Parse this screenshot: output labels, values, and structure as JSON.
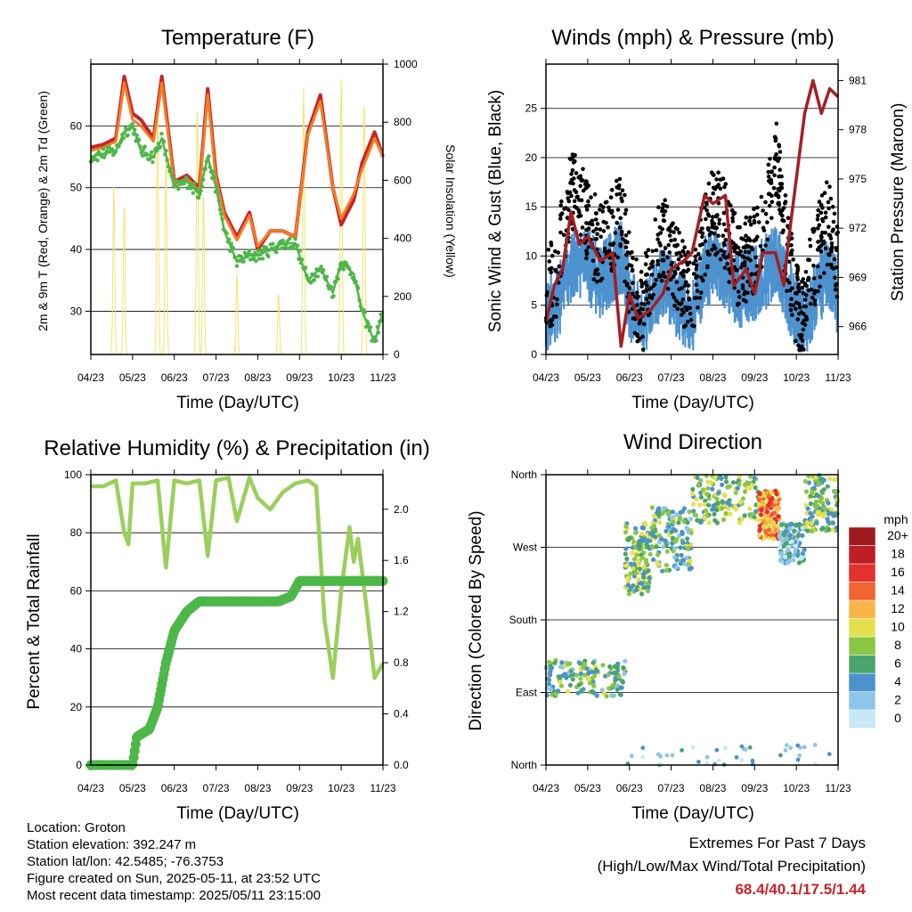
{
  "x_ticks": [
    "04/23",
    "05/23",
    "06/23",
    "07/23",
    "08/23",
    "09/23",
    "10/23",
    "11/23"
  ],
  "xlabel": "Time (Day/UTC)",
  "chart_data": [
    {
      "type": "line",
      "title": "Temperature (F)",
      "xlabel": "Time (Day/UTC)",
      "ylabel": "2m & 9m T (Red, Orange) & 2m Td (Green)",
      "y2label": "Solar Insolation (Yellow)",
      "ylim": [
        23,
        70
      ],
      "y2lim": [
        0,
        1000
      ],
      "yticks": [
        30,
        40,
        50,
        60
      ],
      "y2ticks": [
        0,
        200,
        400,
        600,
        800,
        1000
      ],
      "x": [
        0,
        0.3,
        0.6,
        0.8,
        1.0,
        1.2,
        1.5,
        1.7,
        2.0,
        2.3,
        2.6,
        2.8,
        3.0,
        3.2,
        3.5,
        3.8,
        4.0,
        4.3,
        4.6,
        4.9,
        5.2,
        5.5,
        5.8,
        6.0,
        6.3,
        6.5,
        6.8,
        7.0
      ],
      "series": [
        {
          "name": "2m T",
          "color": "#c8222b",
          "values": [
            56.5,
            57,
            58,
            68,
            62,
            61,
            58,
            68,
            51,
            52,
            50,
            66,
            52,
            46,
            42,
            46,
            40,
            43,
            43,
            42,
            59,
            65,
            50,
            44,
            48,
            54,
            59,
            55
          ]
        },
        {
          "name": "9m T",
          "color": "#f47d20",
          "values": [
            56,
            56.5,
            57.5,
            67,
            61,
            60,
            57.5,
            67,
            50.5,
            51.5,
            49.5,
            65,
            51.5,
            45.5,
            41.5,
            45.5,
            40.5,
            43,
            43,
            42,
            58.5,
            64,
            50,
            45,
            49,
            53,
            58,
            55
          ]
        },
        {
          "name": "2m Td",
          "color": "#4db748",
          "values": [
            55,
            55.5,
            56,
            59,
            60,
            56,
            55,
            58,
            50,
            51,
            49,
            55,
            50,
            43,
            38,
            39,
            39,
            40,
            41,
            41,
            35,
            37,
            33,
            38,
            36,
            30,
            25,
            30
          ]
        }
      ],
      "insolation_peaks": [
        {
          "x": 0.55,
          "value": 580
        },
        {
          "x": 0.8,
          "value": 520
        },
        {
          "x": 1.6,
          "value": 880
        },
        {
          "x": 1.8,
          "value": 700
        },
        {
          "x": 2.55,
          "value": 860
        },
        {
          "x": 2.7,
          "value": 560
        },
        {
          "x": 3.5,
          "value": 280
        },
        {
          "x": 4.5,
          "value": 210
        },
        {
          "x": 5.1,
          "value": 920
        },
        {
          "x": 6.0,
          "value": 960
        },
        {
          "x": 6.55,
          "value": 880
        }
      ]
    },
    {
      "type": "scatter",
      "title": "Winds (mph) & Pressure (mb)",
      "xlabel": "Time (Day/UTC)",
      "ylabel": "Sonic Wind & Gust (Blue, Black)",
      "y2label": "Station Pressure (Maroon)",
      "ylim": [
        0,
        29.5
      ],
      "y2lim": [
        964.3,
        982.0
      ],
      "yticks": [
        0,
        5,
        10,
        15,
        20,
        25
      ],
      "y2ticks": [
        966,
        969,
        972,
        975,
        978,
        981
      ],
      "wind_mean": [
        [
          0,
          3.5
        ],
        [
          0.3,
          5
        ],
        [
          0.5,
          8
        ],
        [
          0.7,
          9.5
        ],
        [
          1.0,
          8.5
        ],
        [
          1.3,
          7
        ],
        [
          1.6,
          8.5
        ],
        [
          1.8,
          9.5
        ],
        [
          2.0,
          5
        ],
        [
          2.3,
          2.5
        ],
        [
          2.5,
          5
        ],
        [
          2.8,
          7
        ],
        [
          3.0,
          6
        ],
        [
          3.3,
          4
        ],
        [
          3.5,
          3.5
        ],
        [
          3.8,
          7.5
        ],
        [
          4.0,
          9
        ],
        [
          4.3,
          8
        ],
        [
          4.6,
          6
        ],
        [
          4.9,
          6.5
        ],
        [
          5.2,
          7.5
        ],
        [
          5.5,
          9
        ],
        [
          5.8,
          6
        ],
        [
          6.1,
          2
        ],
        [
          6.3,
          4
        ],
        [
          6.6,
          7
        ],
        [
          6.8,
          8
        ],
        [
          7.0,
          5
        ]
      ],
      "gust_mean": [
        [
          0,
          5.5
        ],
        [
          0.3,
          9
        ],
        [
          0.5,
          15
        ],
        [
          0.7,
          16.5
        ],
        [
          1.0,
          13
        ],
        [
          1.3,
          11
        ],
        [
          1.6,
          13
        ],
        [
          1.8,
          15
        ],
        [
          2.0,
          8
        ],
        [
          2.3,
          4
        ],
        [
          2.5,
          8
        ],
        [
          2.8,
          12
        ],
        [
          3.0,
          10
        ],
        [
          3.3,
          7
        ],
        [
          3.5,
          6
        ],
        [
          3.8,
          12
        ],
        [
          4.0,
          15
        ],
        [
          4.3,
          13
        ],
        [
          4.6,
          9
        ],
        [
          4.9,
          10
        ],
        [
          5.2,
          13
        ],
        [
          5.5,
          20
        ],
        [
          5.8,
          10
        ],
        [
          6.1,
          3
        ],
        [
          6.3,
          7
        ],
        [
          6.6,
          12
        ],
        [
          6.8,
          14
        ],
        [
          7.0,
          9
        ]
      ],
      "pressure": [
        [
          0,
          966.3
        ],
        [
          0.2,
          968.5
        ],
        [
          0.4,
          969.5
        ],
        [
          0.6,
          973
        ],
        [
          0.8,
          971
        ],
        [
          1.0,
          971.5
        ],
        [
          1.3,
          970
        ],
        [
          1.6,
          970.5
        ],
        [
          1.8,
          964.8
        ],
        [
          2.0,
          968
        ],
        [
          2.2,
          966.5
        ],
        [
          2.5,
          967
        ],
        [
          2.8,
          968
        ],
        [
          3.0,
          969.5
        ],
        [
          3.3,
          970
        ],
        [
          3.5,
          970.5
        ],
        [
          3.8,
          974
        ],
        [
          4.0,
          973.5
        ],
        [
          4.3,
          974
        ],
        [
          4.5,
          968.5
        ],
        [
          4.8,
          969.5
        ],
        [
          5.0,
          968
        ],
        [
          5.2,
          970.5
        ],
        [
          5.5,
          970.5
        ],
        [
          5.7,
          968.5
        ],
        [
          5.8,
          971
        ],
        [
          6.0,
          975
        ],
        [
          6.2,
          979
        ],
        [
          6.4,
          981
        ],
        [
          6.6,
          979
        ],
        [
          6.8,
          980.5
        ],
        [
          7.0,
          980
        ]
      ]
    },
    {
      "type": "line",
      "title": "Relative Humidity (%) & Precipitation (in)",
      "xlabel": "Time (Day/UTC)",
      "ylabel": "Percent & Total Rainfall",
      "ylim": [
        0,
        100
      ],
      "y2lim": [
        0,
        2.27
      ],
      "yticks": [
        0,
        20,
        40,
        60,
        80,
        100
      ],
      "y2ticks": [
        0.0,
        0.4,
        0.8,
        1.2,
        1.6,
        2.0
      ],
      "series": [
        {
          "name": "Relative Humidity",
          "color": "#9bcf5c",
          "points": [
            [
              0,
              96
            ],
            [
              0.3,
              96
            ],
            [
              0.6,
              98
            ],
            [
              0.8,
              80
            ],
            [
              0.9,
              76
            ],
            [
              1.0,
              97
            ],
            [
              1.3,
              97
            ],
            [
              1.6,
              98
            ],
            [
              1.8,
              68
            ],
            [
              2.0,
              98
            ],
            [
              2.3,
              97
            ],
            [
              2.6,
              98
            ],
            [
              2.8,
              72
            ],
            [
              3.0,
              98
            ],
            [
              3.3,
              99
            ],
            [
              3.5,
              84
            ],
            [
              3.8,
              99
            ],
            [
              4.0,
              92
            ],
            [
              4.3,
              88
            ],
            [
              4.6,
              94
            ],
            [
              4.9,
              97
            ],
            [
              5.2,
              98
            ],
            [
              5.4,
              96
            ],
            [
              5.6,
              50
            ],
            [
              5.8,
              30
            ],
            [
              6.0,
              60
            ],
            [
              6.2,
              82
            ],
            [
              6.3,
              70
            ],
            [
              6.4,
              78
            ],
            [
              6.6,
              55
            ],
            [
              6.8,
              30
            ],
            [
              7.0,
              35
            ]
          ]
        },
        {
          "name": "Total Rainfall",
          "color": "#4db748",
          "points": [
            [
              0,
              0
            ],
            [
              1.0,
              0
            ],
            [
              1.1,
              0.22
            ],
            [
              1.4,
              0.28
            ],
            [
              1.6,
              0.45
            ],
            [
              1.8,
              0.8
            ],
            [
              2.0,
              1.05
            ],
            [
              2.3,
              1.2
            ],
            [
              2.6,
              1.28
            ],
            [
              4.5,
              1.28
            ],
            [
              4.8,
              1.32
            ],
            [
              5.0,
              1.44
            ],
            [
              7.0,
              1.44
            ]
          ]
        }
      ]
    },
    {
      "type": "scatter",
      "title": "Wind Direction",
      "xlabel": "Time (Day/UTC)",
      "ylabel": "Direction (Colored By Speed)",
      "ylim": [
        0,
        360
      ],
      "yticks": [
        "North",
        "East",
        "South",
        "West",
        "North"
      ],
      "legend_title": "mph",
      "legend_labels": [
        "0",
        "2",
        "4",
        "6",
        "8",
        "10",
        "12",
        "14",
        "16",
        "18",
        "20+"
      ],
      "legend_colors": [
        "#c6e8f7",
        "#8ec5ea",
        "#4b92cf",
        "#4aa46c",
        "#8bc642",
        "#e5e04d",
        "#f9b54a",
        "#f16530",
        "#e3312b",
        "#bc1f25",
        "#9d1b1e"
      ],
      "clusters": [
        {
          "x0": 0.0,
          "x1": 1.9,
          "dir0": 85,
          "dir1": 130,
          "speed": 6
        },
        {
          "x0": 1.9,
          "x1": 2.5,
          "dir0": 210,
          "dir1": 300,
          "speed": 7
        },
        {
          "x0": 2.5,
          "x1": 3.5,
          "dir0": 240,
          "dir1": 320,
          "speed": 6
        },
        {
          "x0": 3.5,
          "x1": 5.1,
          "dir0": 300,
          "dir1": 360,
          "speed": 7
        },
        {
          "x0": 5.1,
          "x1": 5.6,
          "dir0": 280,
          "dir1": 340,
          "speed": 13
        },
        {
          "x0": 5.6,
          "x1": 6.2,
          "dir0": 250,
          "dir1": 300,
          "speed": 3
        },
        {
          "x0": 6.2,
          "x1": 7.0,
          "dir0": 290,
          "dir1": 360,
          "speed": 7
        }
      ]
    }
  ],
  "info": {
    "location": "Location: Groton",
    "elevation": "Station elevation: 392.247 m",
    "latlon": "Station lat/lon: 42.5485; -76.3753",
    "created": "Figure created on Sun, 2025-05-11, at 23:52 UTC",
    "recent": "Most recent data timestamp: 2025/05/11 23:15:00"
  },
  "extremes": {
    "title": "Extremes For Past 7 Days",
    "subtitle": "(High/Low/Max Wind/Total Precipitation)",
    "values": "68.4/40.1/17.5/1.44"
  }
}
